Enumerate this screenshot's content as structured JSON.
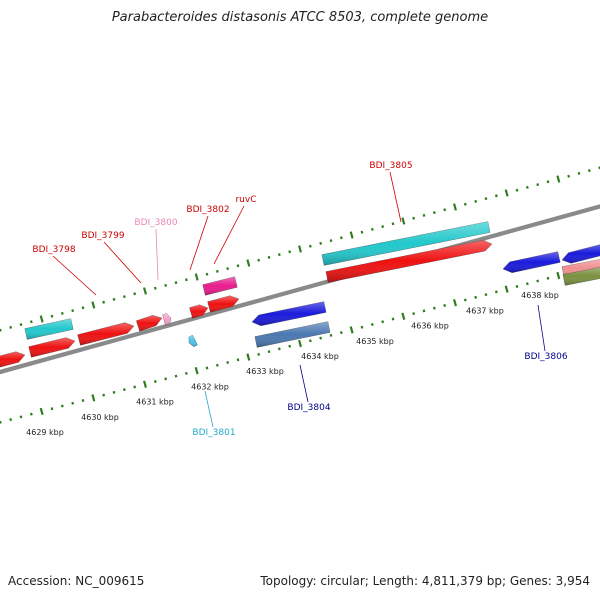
{
  "title": "Parabacteroides distasonis ATCC 8503, complete genome",
  "footer": {
    "accession": "Accession: NC_009615",
    "stats": "Topology: circular; Length: 4,811,379 bp; Genes: 3,954"
  },
  "colors": {
    "backbone": "#8a8a8a",
    "ticks": "#2e7d1e",
    "cds_red": "#ee1111",
    "cds_cyan": "#22c8cc",
    "cds_blue": "#1a1adc",
    "cds_steel": "#4a78b0",
    "cds_magenta": "#e81c8c",
    "cds_pink": "#f4a0c8",
    "cds_light_blue": "#4cc4ee",
    "cds_salmon": "#f09090",
    "cds_olive": "#7a9040",
    "label_red": "#cc0000",
    "label_pink": "#e888b8",
    "label_cyan": "#22aacc",
    "label_navy": "#00008b"
  },
  "scale": {
    "unit": "kbp",
    "ticks": [
      {
        "value": 4629,
        "label": "4629 kbp"
      },
      {
        "value": 4630,
        "label": "4630 kbp"
      },
      {
        "value": 4631,
        "label": "4631 kbp"
      },
      {
        "value": 4632,
        "label": "4632 kbp"
      },
      {
        "value": 4633,
        "label": "4633 kbp"
      },
      {
        "value": 4634,
        "label": "4634 kbp"
      },
      {
        "value": 4635,
        "label": "4635 kbp"
      },
      {
        "value": 4636,
        "label": "4636 kbp"
      },
      {
        "value": 4637,
        "label": "4637 kbp"
      },
      {
        "value": 4638,
        "label": "4638 kbp"
      }
    ]
  },
  "gene_labels": [
    {
      "name": "BDI_3798",
      "color": "label_red"
    },
    {
      "name": "BDI_3799",
      "color": "label_red"
    },
    {
      "name": "BDI_3800",
      "color": "label_pink"
    },
    {
      "name": "BDI_3802",
      "color": "label_red"
    },
    {
      "name": "ruvC",
      "color": "label_red"
    },
    {
      "name": "BDI_3805",
      "color": "label_red"
    },
    {
      "name": "BDI_3801",
      "color": "label_cyan"
    },
    {
      "name": "BDI_3804",
      "color": "label_navy"
    },
    {
      "name": "BDI_3806",
      "color": "label_navy"
    }
  ]
}
